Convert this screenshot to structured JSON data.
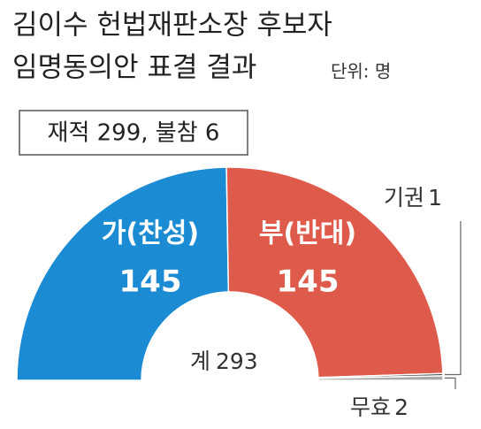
{
  "chart_data": {
    "type": "half-donut",
    "title": [
      "김이수 헌법재판소장 후보자",
      "임명동의안 표결 결과"
    ],
    "unit": "단위: 명",
    "note": "재적 299, 불참 6",
    "categories": [
      "가(찬성)",
      "부(반대)",
      "기권",
      "무효"
    ],
    "values": [
      145,
      145,
      1,
      2
    ],
    "colors": [
      "#1b8bd3",
      "#de5a4b",
      "#3a3a3a",
      "#a9a9a9"
    ],
    "total": {
      "label": "계",
      "value": 293
    }
  }
}
